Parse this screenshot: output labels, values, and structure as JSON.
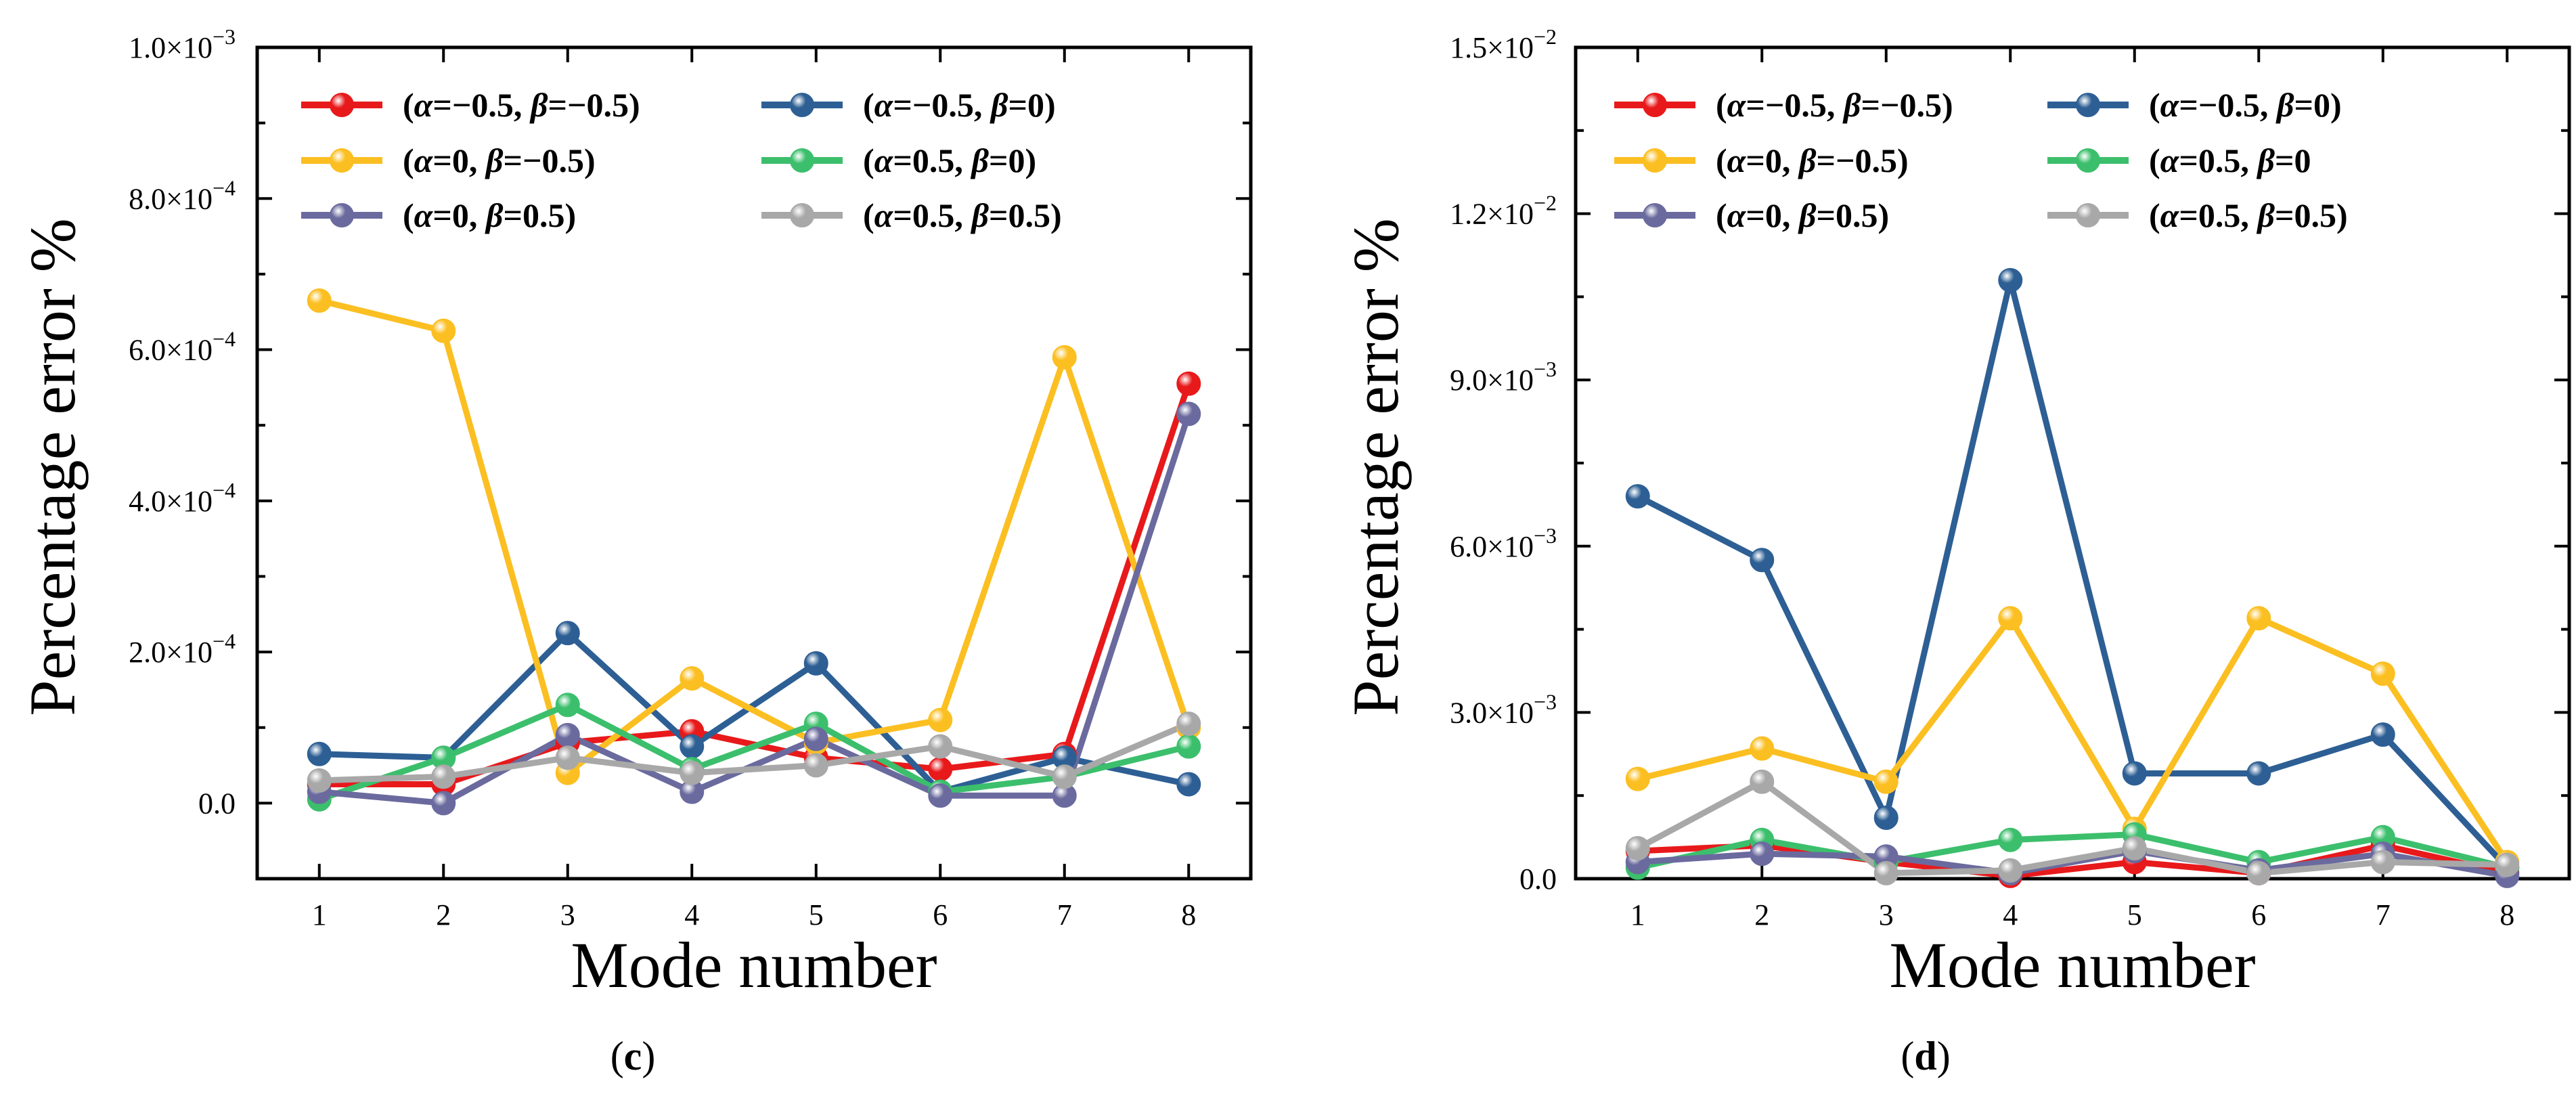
{
  "chart_data": [
    {
      "type": "line",
      "panel_label": "(c)",
      "xlabel": "Mode number",
      "ylabel": "Percentage error %",
      "xlim": [
        0.5,
        8.5
      ],
      "ylim": [
        -0.0001,
        0.001
      ],
      "x_ticks": [
        1,
        2,
        3,
        4,
        5,
        6,
        7,
        8
      ],
      "x_tick_labels": [
        "1",
        "2",
        "3",
        "4",
        "5",
        "6",
        "7",
        "8"
      ],
      "y_ticks": [
        0,
        0.0002,
        0.0004,
        0.0006,
        0.0008,
        0.001
      ],
      "y_tick_labels": [
        {
          "mant": "0.0",
          "exp": ""
        },
        {
          "mant": "2.0×10",
          "exp": "−4"
        },
        {
          "mant": "4.0×10",
          "exp": "−4"
        },
        {
          "mant": "6.0×10",
          "exp": "−4"
        },
        {
          "mant": "8.0×10",
          "exp": "−4"
        },
        {
          "mant": "1.0×10",
          "exp": "−3"
        }
      ],
      "legend_columns": [
        [
          0,
          2,
          4
        ],
        [
          1,
          3,
          5
        ]
      ],
      "x": [
        1,
        2,
        3,
        4,
        5,
        6,
        7,
        8
      ],
      "series": [
        {
          "name": "(α=−0.5, β=−0.5)",
          "alpha": "−0.5",
          "beta": "−0.5",
          "color": "#e8191b",
          "values": [
            2.5e-05,
            2.5e-05,
            8e-05,
            9.5e-05,
            6e-05,
            4.5e-05,
            6.5e-05,
            0.000555
          ]
        },
        {
          "name": "(α=−0.5, β=0)",
          "alpha": "−0.5",
          "beta": "0",
          "color": "#2d5f94",
          "values": [
            6.5e-05,
            6e-05,
            0.000225,
            7.5e-05,
            0.000185,
            1.5e-05,
            6e-05,
            2.5e-05
          ]
        },
        {
          "name": "(α=0, β=−0.5)",
          "alpha": "0",
          "beta": "−0.5",
          "color": "#fbbf22",
          "values": [
            0.000665,
            0.000625,
            4e-05,
            0.000165,
            8e-05,
            0.00011,
            0.00059,
            0.0001
          ]
        },
        {
          "name": "(α=0.5, β=0)",
          "alpha": "0.5",
          "beta": "0",
          "color": "#3cbf6c",
          "values": [
            5e-06,
            6e-05,
            0.00013,
            4.5e-05,
            0.000105,
            1.5e-05,
            3.5e-05,
            7.5e-05
          ]
        },
        {
          "name": "(α=0, β=0.5)",
          "alpha": "0",
          "beta": "0.5",
          "color": "#6a6a9e",
          "values": [
            1.5e-05,
            0.0,
            9e-05,
            1.5e-05,
            8.5e-05,
            1e-05,
            1e-05,
            0.000515
          ]
        },
        {
          "name": "(α=0.5, β=0.5)",
          "alpha": "0.5",
          "beta": "0.5",
          "color": "#a8a8a8",
          "values": [
            3e-05,
            3.5e-05,
            6e-05,
            4e-05,
            5e-05,
            7.5e-05,
            3.5e-05,
            0.000105
          ]
        }
      ]
    },
    {
      "type": "line",
      "panel_label": "(d)",
      "xlabel": "Mode number",
      "ylabel": "Percentage error %",
      "xlim": [
        0.5,
        8.5
      ],
      "ylim": [
        0,
        0.015
      ],
      "x_ticks": [
        1,
        2,
        3,
        4,
        5,
        6,
        7,
        8
      ],
      "x_tick_labels": [
        "1",
        "2",
        "3",
        "4",
        "5",
        "6",
        "7",
        "8"
      ],
      "y_ticks": [
        0,
        0.003,
        0.006,
        0.009,
        0.012,
        0.015
      ],
      "y_tick_labels": [
        {
          "mant": "0.0",
          "exp": ""
        },
        {
          "mant": "3.0×10",
          "exp": "−3"
        },
        {
          "mant": "6.0×10",
          "exp": "−3"
        },
        {
          "mant": "9.0×10",
          "exp": "−3"
        },
        {
          "mant": "1.2×10",
          "exp": "−2"
        },
        {
          "mant": "1.5×10",
          "exp": "−2"
        }
      ],
      "legend_columns": [
        [
          0,
          2,
          4
        ],
        [
          1,
          3,
          5
        ]
      ],
      "x": [
        1,
        2,
        3,
        4,
        5,
        6,
        7,
        8
      ],
      "series": [
        {
          "name": "(α=−0.5, β=−0.5)",
          "alpha": "−0.5",
          "beta": "−0.5",
          "color": "#e8191b",
          "values": [
            0.0005,
            0.0006,
            0.0003,
            5e-05,
            0.0003,
            0.0001,
            0.0006,
            0.0001
          ]
        },
        {
          "name": "(α=−0.5, β=0)",
          "alpha": "−0.5",
          "beta": "0",
          "color": "#2d5f94",
          "values": [
            0.0069,
            0.00575,
            0.0011,
            0.0108,
            0.0019,
            0.0019,
            0.0026,
            0.0002
          ]
        },
        {
          "name": "(α=0, β=−0.5)",
          "alpha": "0",
          "beta": "−0.5",
          "color": "#fbbf22",
          "values": [
            0.0018,
            0.00235,
            0.00175,
            0.0047,
            0.0009,
            0.0047,
            0.0037,
            0.0003
          ]
        },
        {
          "name": "(α=0.5, β=0",
          "alpha": "0.5",
          "beta": "0",
          "color": "#3cbf6c",
          "values": [
            0.0002,
            0.0007,
            0.0003,
            0.0007,
            0.0008,
            0.0003,
            0.00075,
            0.0002
          ]
        },
        {
          "name": "(α=0, β=0.5)",
          "alpha": "0",
          "beta": "0.5",
          "color": "#6a6a9e",
          "values": [
            0.0003,
            0.00045,
            0.0004,
            0.0001,
            0.0005,
            0.00015,
            0.00045,
            5e-05
          ]
        },
        {
          "name": "(α=0.5, β=0.5)",
          "alpha": "0.5",
          "beta": "0.5",
          "color": "#a8a8a8",
          "values": [
            0.00055,
            0.00175,
            0.0001,
            0.00015,
            0.00055,
            0.0001,
            0.0003,
            0.00025
          ]
        }
      ]
    }
  ]
}
